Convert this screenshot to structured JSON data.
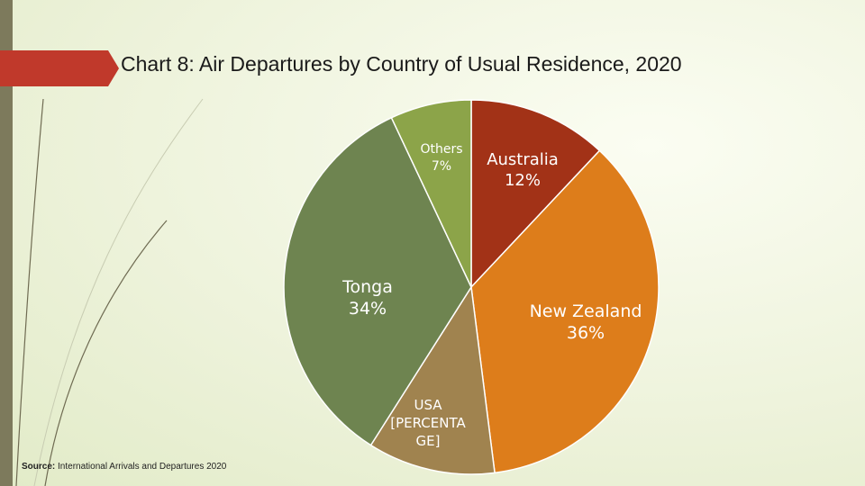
{
  "title": "Chart 8:  Air Departures by Country of Usual Residence, 2020",
  "source_label": "Source:",
  "source_text": " International Arrivals and Departures 2020",
  "colors": {
    "australia": "#a23217",
    "new_zealand": "#dd7d1b",
    "usa": "#a0834f",
    "tonga": "#6e8450",
    "others": "#8ca449",
    "accent": "#c0392b"
  },
  "chart_data": {
    "type": "pie",
    "title": "Chart 8:  Air Departures by Country of Usual Residence, 2020",
    "slices": [
      {
        "name": "Australia",
        "value": 12,
        "label_lines": [
          "Australia",
          "12%"
        ]
      },
      {
        "name": "New Zealand",
        "value": 36,
        "label_lines": [
          "New Zealand",
          "36%"
        ]
      },
      {
        "name": "USA",
        "value": 11,
        "label_lines": [
          "USA",
          "[PERCENTA",
          "GE]"
        ]
      },
      {
        "name": "Tonga",
        "value": 34,
        "label_lines": [
          "Tonga",
          "34%"
        ]
      },
      {
        "name": "Others",
        "value": 7,
        "label_lines": [
          "Others",
          "7%"
        ]
      }
    ]
  }
}
